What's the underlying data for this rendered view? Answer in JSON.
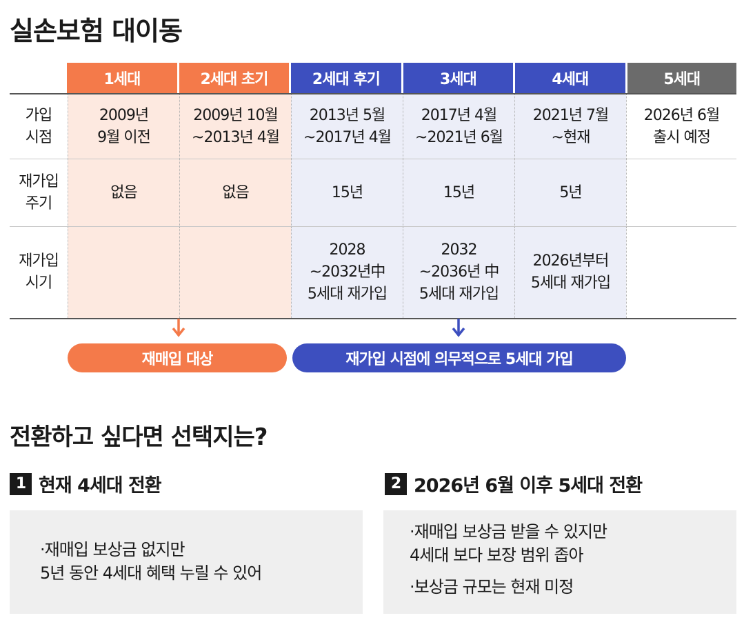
{
  "title": "실손보험 대이동",
  "table": {
    "headers": [
      {
        "label": "1세대",
        "color": "#f47a4a"
      },
      {
        "label": "2세대 초기",
        "color": "#f47a4a"
      },
      {
        "label": "2세대 후기",
        "color": "#3d4fbf"
      },
      {
        "label": "3세대",
        "color": "#3d4fbf"
      },
      {
        "label": "4세대",
        "color": "#3d4fbf"
      },
      {
        "label": "5세대",
        "color": "#6b6b6b"
      }
    ],
    "rows": [
      {
        "label": "가입\n시점",
        "cells": [
          "2009년\n9월 이전",
          "2009년 10월\n~2013년 4월",
          "2013년 5월\n~2017년 4월",
          "2017년 4월\n~2021년 6월",
          "2021년 7월\n~현재",
          "2026년 6월\n출시 예정"
        ]
      },
      {
        "label": "재가입\n주기",
        "cells": [
          "없음",
          "없음",
          "15년",
          "15년",
          "5년",
          ""
        ]
      },
      {
        "label": "재가입\n시기",
        "cells": [
          "",
          "",
          "2028\n~2032년中\n5세대 재가입",
          "2032\n~2036년 中\n5세대 재가입",
          "2026년부터\n5세대 재가입",
          ""
        ]
      }
    ]
  },
  "pills": {
    "orange": "재매입 대상",
    "blue": "재가입 시점에 의무적으로 5세대 가입"
  },
  "subtitle": "전환하고 싶다면 선택지는?",
  "options": [
    {
      "number": "1",
      "title": "현재 4세대 전환",
      "bullets": [
        "·재매입 보상금 없지만\n 5년 동안 4세대 혜택 누릴 수 있어"
      ]
    },
    {
      "number": "2",
      "title": "2026년 6월 이후 5세대 전환",
      "bullets": [
        "·재매입 보상금 받을 수 있지만\n 4세대 보다 보장 범위 좁아",
        "·보상금 규모는 현재 미정"
      ]
    }
  ]
}
